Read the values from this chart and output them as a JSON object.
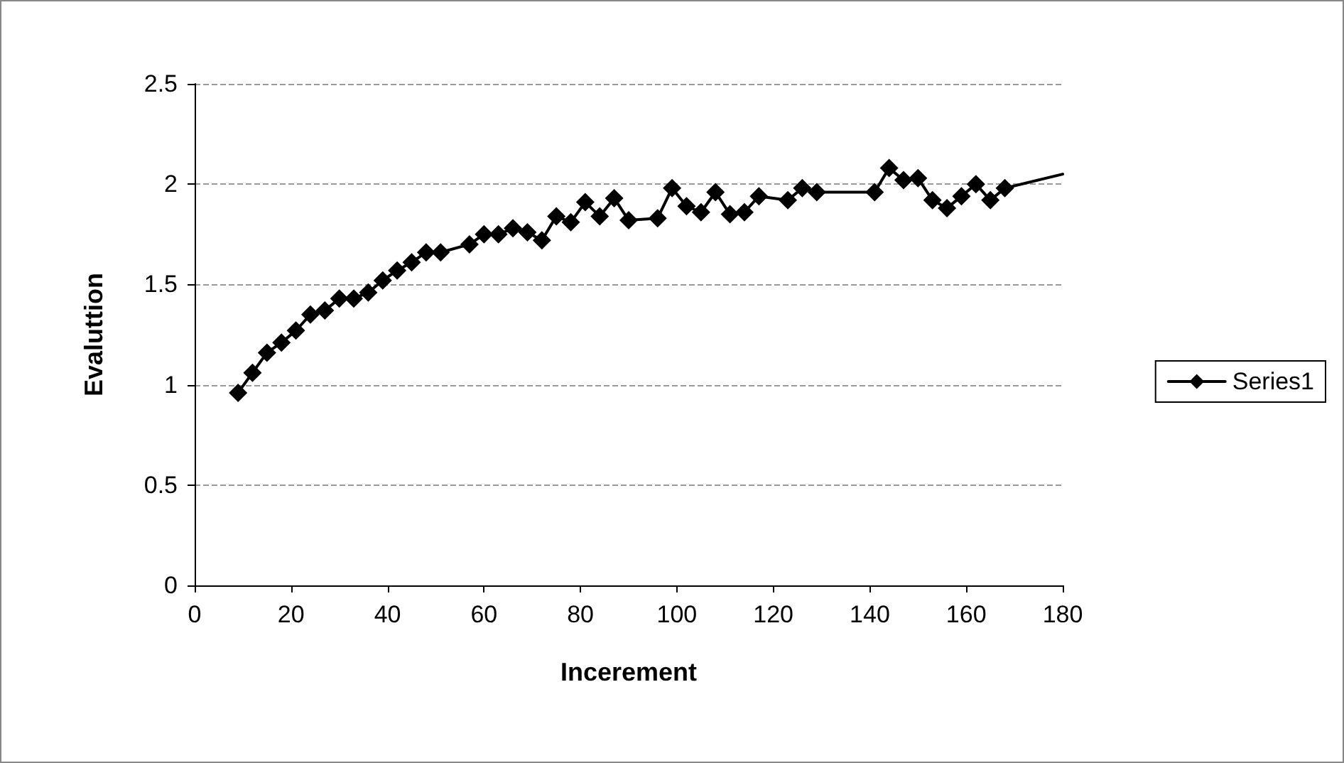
{
  "chart_data": {
    "type": "line",
    "xlabel": "Incerement",
    "ylabel": "Evaluttion",
    "xlim": [
      0,
      180
    ],
    "xticks": [
      0,
      20,
      40,
      60,
      80,
      100,
      120,
      140,
      160,
      180
    ],
    "ylim": [
      0,
      2.5
    ],
    "yticks": [
      0,
      0.5,
      1,
      1.5,
      2,
      2.5
    ],
    "grid": "y",
    "legend": "right",
    "marker": "diamond",
    "x": [
      9,
      12,
      15,
      18,
      21,
      24,
      27,
      30,
      33,
      36,
      39,
      42,
      45,
      48,
      51,
      57,
      60,
      63,
      66,
      69,
      72,
      75,
      78,
      81,
      84,
      87,
      90,
      96,
      99,
      102,
      105,
      108,
      111,
      114,
      117,
      123,
      126,
      129,
      141,
      144,
      147,
      150,
      153,
      156,
      159,
      162,
      165,
      168,
      180
    ],
    "series": [
      {
        "name": "Series1",
        "color": "#000000",
        "values": [
          0.96,
          1.06,
          1.16,
          1.21,
          1.27,
          1.35,
          1.37,
          1.43,
          1.43,
          1.46,
          1.52,
          1.57,
          1.61,
          1.66,
          1.66,
          1.7,
          1.75,
          1.75,
          1.78,
          1.76,
          1.72,
          1.84,
          1.81,
          1.91,
          1.84,
          1.93,
          1.82,
          1.83,
          1.98,
          1.89,
          1.86,
          1.96,
          1.85,
          1.86,
          1.94,
          1.92,
          1.98,
          1.96,
          1.96,
          2.08,
          2.02,
          2.03,
          1.92,
          1.88,
          1.94,
          2.0,
          1.92,
          1.98,
          2.05
        ]
      }
    ]
  }
}
